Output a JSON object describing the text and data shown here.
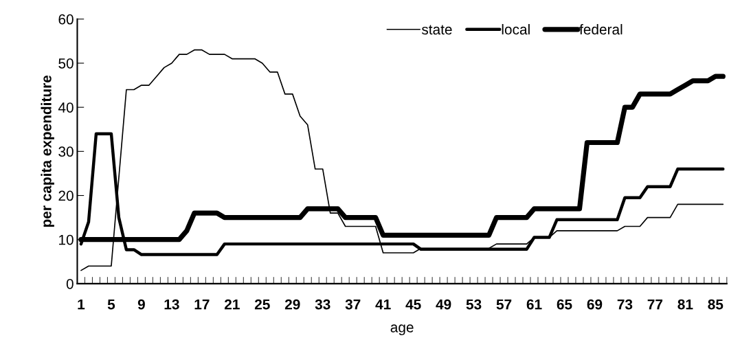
{
  "chart_data": {
    "type": "line",
    "xlabel": "age",
    "ylabel": "per capita expenditure",
    "categories": [
      "1",
      null,
      null,
      null,
      "5",
      null,
      null,
      null,
      "9",
      null,
      null,
      null,
      "13",
      null,
      null,
      null,
      "17",
      null,
      null,
      null,
      "21",
      null,
      null,
      null,
      "25",
      null,
      null,
      null,
      "29",
      null,
      null,
      null,
      "33",
      null,
      null,
      null,
      "37",
      null,
      null,
      null,
      "41",
      null,
      null,
      null,
      "45",
      null,
      null,
      null,
      "49",
      null,
      null,
      null,
      "53",
      null,
      null,
      null,
      "57",
      null,
      null,
      null,
      "61",
      null,
      null,
      null,
      "65",
      null,
      null,
      null,
      "69",
      null,
      null,
      null,
      "73",
      null,
      null,
      null,
      "77",
      null,
      null,
      null,
      "81",
      null,
      null,
      null,
      "85",
      null
    ],
    "ylim": [
      0,
      60
    ],
    "yticks": [
      0,
      10,
      20,
      30,
      40,
      50,
      60
    ],
    "grid": false,
    "legend": "top right",
    "marker": "none",
    "line_style": "solid",
    "series": [
      {
        "name": "state",
        "color": "#000000",
        "values": [
          3,
          4,
          4,
          4,
          4,
          24,
          44,
          44,
          45,
          45,
          47,
          49,
          50,
          52,
          52,
          53,
          53,
          52,
          52,
          52,
          51,
          51,
          51,
          51,
          50,
          48,
          48,
          43,
          43,
          38,
          36,
          26,
          26,
          16,
          16,
          13,
          13,
          13,
          13,
          13,
          7,
          7,
          7,
          7,
          7,
          8,
          8,
          8,
          8,
          8,
          8,
          8,
          8,
          8,
          8,
          9,
          9,
          9,
          9,
          9,
          10.5,
          10.5,
          10.5,
          12,
          12,
          12,
          12,
          12,
          12,
          12,
          12,
          12,
          13,
          13,
          13,
          15,
          15,
          15,
          15,
          18,
          18,
          18,
          18,
          18,
          18,
          18
        ]
      },
      {
        "name": "local",
        "color": "#000000",
        "values": [
          9,
          14,
          34,
          34,
          34,
          15,
          7.7,
          7.7,
          6.6,
          6.6,
          6.6,
          6.6,
          6.6,
          6.6,
          6.6,
          6.6,
          6.6,
          6.6,
          6.6,
          9,
          9,
          9,
          9,
          9,
          9,
          9,
          9,
          9,
          9,
          9,
          9,
          9,
          9,
          9,
          9,
          9,
          9,
          9,
          9,
          9,
          9,
          9,
          9,
          9,
          9,
          7.8,
          7.8,
          7.8,
          7.8,
          7.8,
          7.8,
          7.8,
          7.8,
          7.8,
          7.8,
          7.8,
          7.8,
          7.8,
          7.8,
          7.8,
          10.5,
          10.5,
          10.5,
          14.5,
          14.5,
          14.5,
          14.5,
          14.5,
          14.5,
          14.5,
          14.5,
          14.5,
          19.5,
          19.5,
          19.5,
          22,
          22,
          22,
          22,
          26,
          26,
          26,
          26,
          26,
          26,
          26
        ]
      },
      {
        "name": "federal",
        "color": "#000000",
        "values": [
          10,
          10,
          10,
          10,
          10,
          10,
          10,
          10,
          10,
          10,
          10,
          10,
          10,
          10,
          12,
          16,
          16,
          16,
          16,
          15,
          15,
          15,
          15,
          15,
          15,
          15,
          15,
          15,
          15,
          15,
          17,
          17,
          17,
          17,
          17,
          15,
          15,
          15,
          15,
          15,
          11,
          11,
          11,
          11,
          11,
          11,
          11,
          11,
          11,
          11,
          11,
          11,
          11,
          11,
          11,
          15,
          15,
          15,
          15,
          15,
          17,
          17,
          17,
          17,
          17,
          17,
          17,
          32,
          32,
          32,
          32,
          32,
          40,
          40,
          43,
          43,
          43,
          43,
          43,
          44,
          45,
          46,
          46,
          46,
          47,
          47
        ]
      }
    ]
  }
}
